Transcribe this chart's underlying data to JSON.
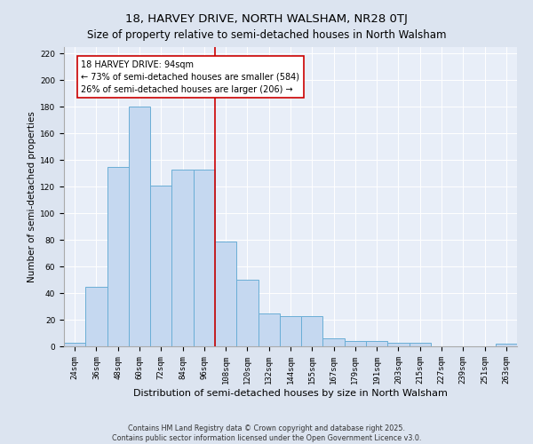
{
  "title": "18, HARVEY DRIVE, NORTH WALSHAM, NR28 0TJ",
  "subtitle": "Size of property relative to semi-detached houses in North Walsham",
  "xlabel": "Distribution of semi-detached houses by size in North Walsham",
  "ylabel": "Number of semi-detached properties",
  "bins": [
    "24sqm",
    "36sqm",
    "48sqm",
    "60sqm",
    "72sqm",
    "84sqm",
    "96sqm",
    "108sqm",
    "120sqm",
    "132sqm",
    "144sqm",
    "155sqm",
    "167sqm",
    "179sqm",
    "191sqm",
    "203sqm",
    "215sqm",
    "227sqm",
    "239sqm",
    "251sqm",
    "263sqm"
  ],
  "values": [
    3,
    45,
    135,
    180,
    121,
    133,
    133,
    79,
    50,
    25,
    23,
    23,
    6,
    4,
    4,
    3,
    3,
    0,
    0,
    0,
    2
  ],
  "bar_color": "#c5d8f0",
  "bar_edge_color": "#6aaed6",
  "vline_color": "#cc0000",
  "annotation_text": "18 HARVEY DRIVE: 94sqm\n← 73% of semi-detached houses are smaller (584)\n26% of semi-detached houses are larger (206) →",
  "annotation_box_color": "#ffffff",
  "annotation_box_edge": "#cc0000",
  "ylim": [
    0,
    225
  ],
  "yticks": [
    0,
    20,
    40,
    60,
    80,
    100,
    120,
    140,
    160,
    180,
    200,
    220
  ],
  "bg_color": "#dce4f0",
  "plot_bg_color": "#e8eef8",
  "footer": "Contains HM Land Registry data © Crown copyright and database right 2025.\nContains public sector information licensed under the Open Government Licence v3.0.",
  "title_fontsize": 9.5,
  "subtitle_fontsize": 8.5,
  "xlabel_fontsize": 8,
  "ylabel_fontsize": 7.5,
  "tick_fontsize": 6.5,
  "annotation_fontsize": 7,
  "footer_fontsize": 5.8
}
